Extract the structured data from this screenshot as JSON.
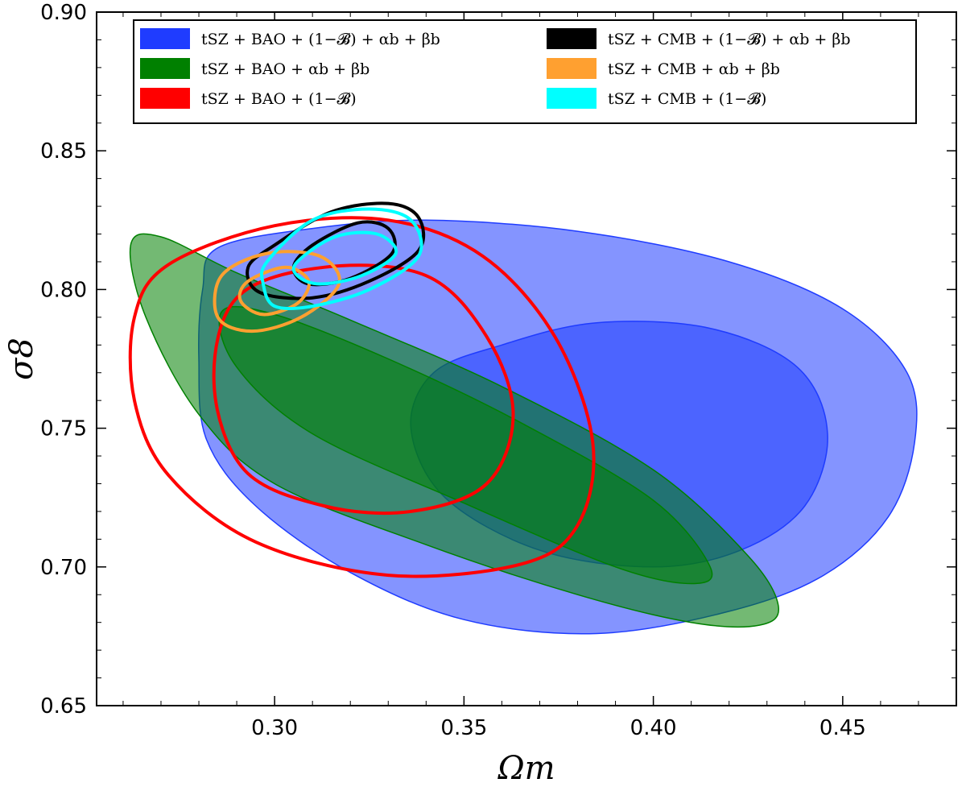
{
  "chart_data": {
    "type": "contour",
    "xlabel": "Ωm",
    "ylabel": "σ8",
    "xlim": [
      0.253,
      0.48
    ],
    "ylim": [
      0.65,
      0.9
    ],
    "x_ticks": [
      0.3,
      0.35,
      0.4,
      0.45
    ],
    "y_ticks": [
      0.65,
      0.7,
      0.75,
      0.8,
      0.85,
      0.9
    ],
    "x_tick_labels": [
      "0.30",
      "0.35",
      "0.40",
      "0.45"
    ],
    "y_tick_labels": [
      "0.65",
      "0.70",
      "0.75",
      "0.80",
      "0.85",
      "0.90"
    ],
    "legend_placement": "top (two columns)",
    "grid": false,
    "series": [
      {
        "name": "tSZ + BAO + (1−𝓑) + αb + βb",
        "color": "#1f3cff",
        "style": "filled",
        "contours": [
          {
            "level": "95%",
            "points": [
              [
                0.285,
                0.815
              ],
              [
                0.31,
                0.822
              ],
              [
                0.34,
                0.825
              ],
              [
                0.38,
                0.821
              ],
              [
                0.42,
                0.81
              ],
              [
                0.45,
                0.793
              ],
              [
                0.467,
                0.77
              ],
              [
                0.469,
                0.745
              ],
              [
                0.462,
                0.718
              ],
              [
                0.445,
                0.697
              ],
              [
                0.42,
                0.684
              ],
              [
                0.385,
                0.676
              ],
              [
                0.35,
                0.681
              ],
              [
                0.32,
                0.698
              ],
              [
                0.295,
                0.722
              ],
              [
                0.282,
                0.746
              ],
              [
                0.28,
                0.775
              ],
              [
                0.281,
                0.8
              ]
            ]
          },
          {
            "level": "68%",
            "points": [
              [
                0.36,
                0.78
              ],
              [
                0.385,
                0.788
              ],
              [
                0.415,
                0.786
              ],
              [
                0.438,
                0.772
              ],
              [
                0.446,
                0.748
              ],
              [
                0.44,
                0.722
              ],
              [
                0.423,
                0.706
              ],
              [
                0.4,
                0.7
              ],
              [
                0.37,
                0.706
              ],
              [
                0.345,
                0.725
              ],
              [
                0.336,
                0.75
              ],
              [
                0.342,
                0.77
              ]
            ]
          }
        ]
      },
      {
        "name": "tSZ + BAO + αb + βb",
        "color": "#008000",
        "style": "filled",
        "contours": [
          {
            "level": "95%",
            "points": [
              [
                0.262,
                0.816
              ],
              [
                0.27,
                0.819
              ],
              [
                0.29,
                0.806
              ],
              [
                0.32,
                0.789
              ],
              [
                0.36,
                0.765
              ],
              [
                0.4,
                0.735
              ],
              [
                0.425,
                0.704
              ],
              [
                0.433,
                0.686
              ],
              [
                0.428,
                0.679
              ],
              [
                0.41,
                0.68
              ],
              [
                0.38,
                0.69
              ],
              [
                0.34,
                0.708
              ],
              [
                0.3,
                0.73
              ],
              [
                0.28,
                0.755
              ],
              [
                0.266,
                0.79
              ]
            ]
          },
          {
            "level": "68%",
            "points": [
              [
                0.286,
                0.792
              ],
              [
                0.3,
                0.791
              ],
              [
                0.33,
                0.775
              ],
              [
                0.365,
                0.752
              ],
              [
                0.4,
                0.724
              ],
              [
                0.415,
                0.7
              ],
              [
                0.41,
                0.694
              ],
              [
                0.39,
                0.7
              ],
              [
                0.35,
                0.723
              ],
              [
                0.31,
                0.748
              ],
              [
                0.29,
                0.772
              ]
            ]
          }
        ]
      },
      {
        "name": "tSZ + BAO + (1−𝓑)",
        "color": "#ff0000",
        "style": "line",
        "contours": [
          {
            "level": "95%",
            "points": [
              [
                0.272,
                0.809
              ],
              [
                0.3,
                0.823
              ],
              [
                0.33,
                0.825
              ],
              [
                0.355,
                0.812
              ],
              [
                0.374,
                0.783
              ],
              [
                0.384,
                0.745
              ],
              [
                0.38,
                0.715
              ],
              [
                0.365,
                0.701
              ],
              [
                0.33,
                0.697
              ],
              [
                0.295,
                0.709
              ],
              [
                0.272,
                0.733
              ],
              [
                0.263,
                0.76
              ],
              [
                0.263,
                0.79
              ]
            ]
          },
          {
            "level": "68%",
            "points": [
              [
                0.29,
                0.797
              ],
              [
                0.313,
                0.808
              ],
              [
                0.34,
                0.805
              ],
              [
                0.356,
                0.783
              ],
              [
                0.363,
                0.755
              ],
              [
                0.356,
                0.73
              ],
              [
                0.336,
                0.72
              ],
              [
                0.313,
                0.722
              ],
              [
                0.292,
                0.735
              ],
              [
                0.284,
                0.766
              ]
            ]
          }
        ]
      },
      {
        "name": "tSZ + CMB + (1−𝓑) + αb + βb",
        "color": "#000000",
        "style": "line",
        "contours": [
          {
            "level": "95%",
            "points": [
              [
                0.3,
                0.816
              ],
              [
                0.315,
                0.828
              ],
              [
                0.33,
                0.831
              ],
              [
                0.338,
                0.826
              ],
              [
                0.338,
                0.814
              ],
              [
                0.325,
                0.803
              ],
              [
                0.31,
                0.797
              ],
              [
                0.296,
                0.799
              ],
              [
                0.293,
                0.808
              ]
            ]
          },
          {
            "level": "68%",
            "points": [
              [
                0.31,
                0.816
              ],
              [
                0.322,
                0.824
              ],
              [
                0.33,
                0.822
              ],
              [
                0.331,
                0.813
              ],
              [
                0.32,
                0.804
              ],
              [
                0.309,
                0.802
              ],
              [
                0.305,
                0.808
              ]
            ]
          }
        ]
      },
      {
        "name": "tSZ + CMB + αb + βb",
        "color": "#ffa030",
        "style": "line",
        "contours": [
          {
            "level": "95%",
            "points": [
              [
                0.286,
                0.805
              ],
              [
                0.298,
                0.813
              ],
              [
                0.312,
                0.812
              ],
              [
                0.317,
                0.802
              ],
              [
                0.307,
                0.79
              ],
              [
                0.294,
                0.785
              ],
              [
                0.285,
                0.79
              ]
            ]
          },
          {
            "level": "68%",
            "points": [
              [
                0.293,
                0.803
              ],
              [
                0.303,
                0.808
              ],
              [
                0.309,
                0.803
              ],
              [
                0.306,
                0.795
              ],
              [
                0.297,
                0.791
              ],
              [
                0.291,
                0.796
              ]
            ]
          }
        ]
      },
      {
        "name": "tSZ + CMB + (1−𝓑)",
        "color": "#00ffff",
        "style": "line",
        "contours": [
          {
            "level": "95%",
            "points": [
              [
                0.298,
                0.81
              ],
              [
                0.31,
                0.825
              ],
              [
                0.325,
                0.829
              ],
              [
                0.336,
                0.825
              ],
              [
                0.338,
                0.812
              ],
              [
                0.325,
                0.8
              ],
              [
                0.31,
                0.794
              ],
              [
                0.3,
                0.794
              ],
              [
                0.297,
                0.802
              ]
            ]
          },
          {
            "level": "68%",
            "points": [
              [
                0.306,
                0.81
              ],
              [
                0.316,
                0.819
              ],
              [
                0.327,
                0.82
              ],
              [
                0.332,
                0.813
              ],
              [
                0.323,
                0.805
              ],
              [
                0.312,
                0.802
              ],
              [
                0.306,
                0.805
              ]
            ]
          }
        ]
      }
    ]
  }
}
